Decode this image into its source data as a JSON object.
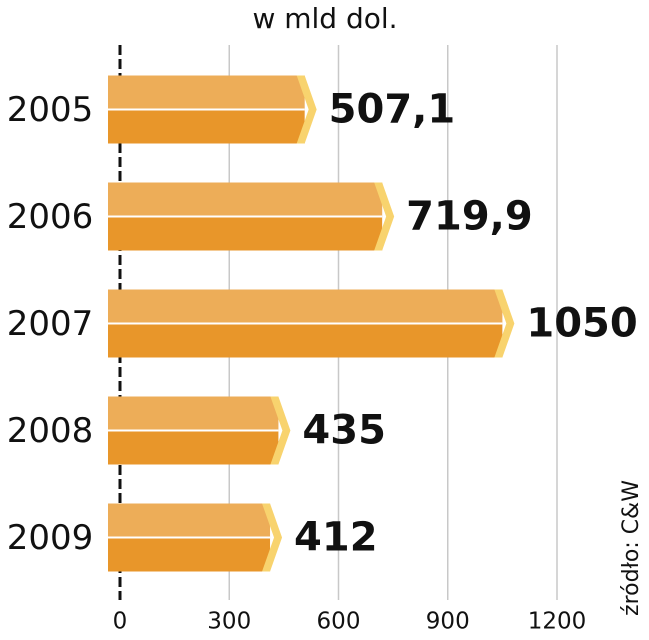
{
  "chart_data": {
    "type": "bar",
    "orientation": "horizontal",
    "title": "w mld dol.",
    "source": "źródło: C&W",
    "categories": [
      "2005",
      "2006",
      "2007",
      "2008",
      "2009"
    ],
    "values": [
      507.1,
      719.9,
      1050,
      435,
      412
    ],
    "value_labels": [
      "507,1",
      "719,9",
      "1050",
      "435",
      "412"
    ],
    "color": "#e8962a",
    "xlim": [
      0,
      1200
    ],
    "xticks": [
      0,
      300,
      600,
      900,
      1200
    ],
    "grid": true
  }
}
